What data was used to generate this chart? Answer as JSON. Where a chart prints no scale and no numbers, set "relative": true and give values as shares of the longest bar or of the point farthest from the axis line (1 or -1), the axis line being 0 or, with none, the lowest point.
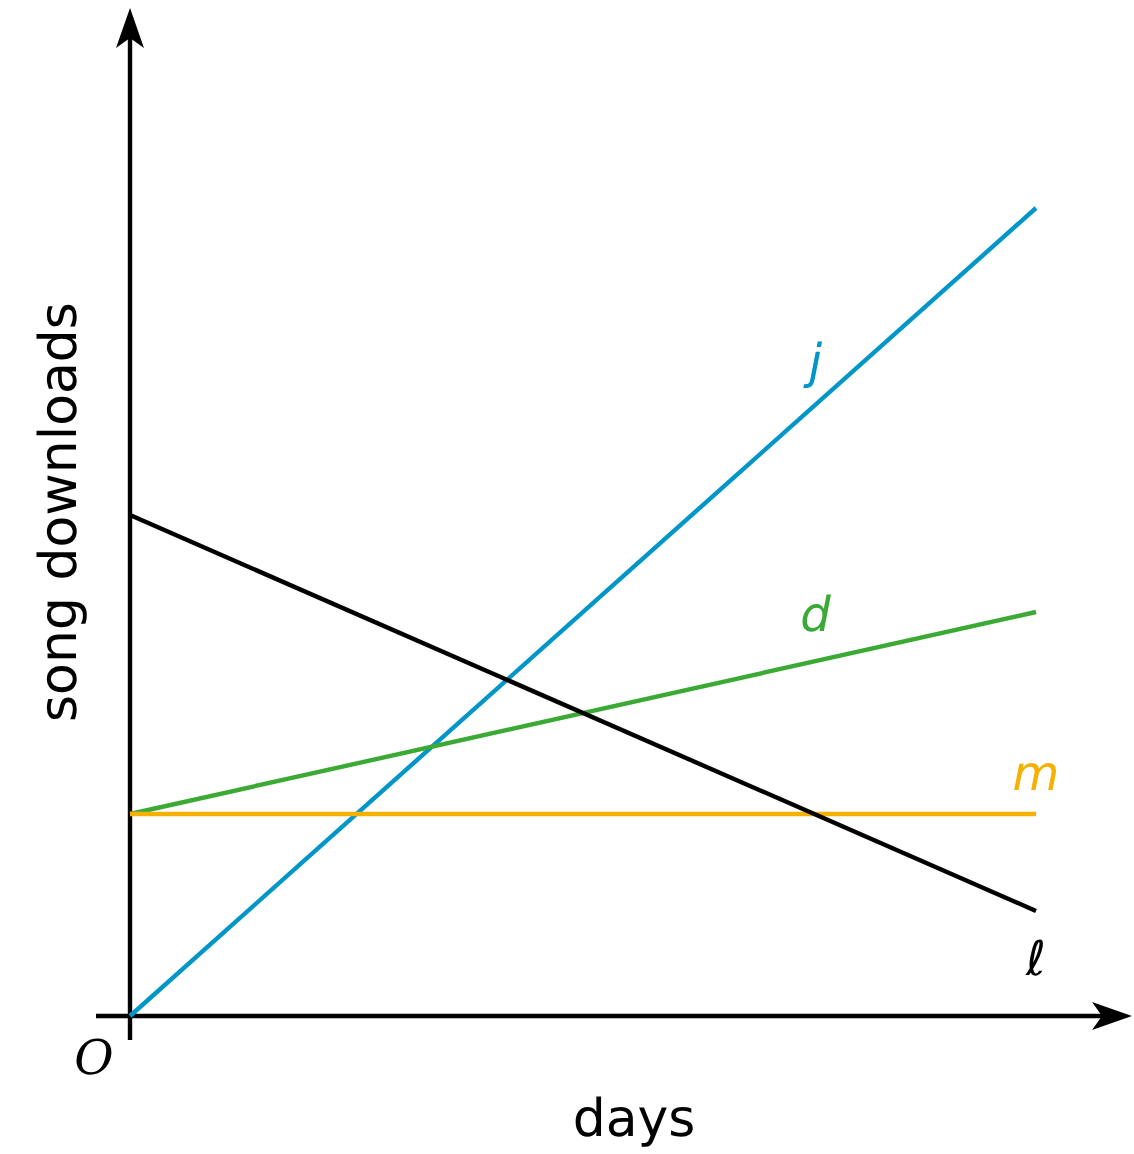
{
  "chart_data": {
    "type": "line",
    "relative": true,
    "xlabel": "days",
    "ylabel": "song downloads",
    "categories": [
      null,
      null
    ],
    "annotations": [
      "O"
    ],
    "marker": "none",
    "line_style": "solid",
    "series": [
      {
        "name": "j",
        "color": "#0096c8",
        "values": [
          0,
          1
        ]
      },
      {
        "name": "d",
        "color": "#3aaa35",
        "values": [
          0.25,
          0.5
        ]
      },
      {
        "name": "m",
        "color": "#f5b000",
        "values": [
          0.25,
          0.25
        ]
      },
      {
        "name": "ℓ",
        "color": "#000000",
        "values": [
          0.62,
          0.13
        ]
      }
    ]
  }
}
